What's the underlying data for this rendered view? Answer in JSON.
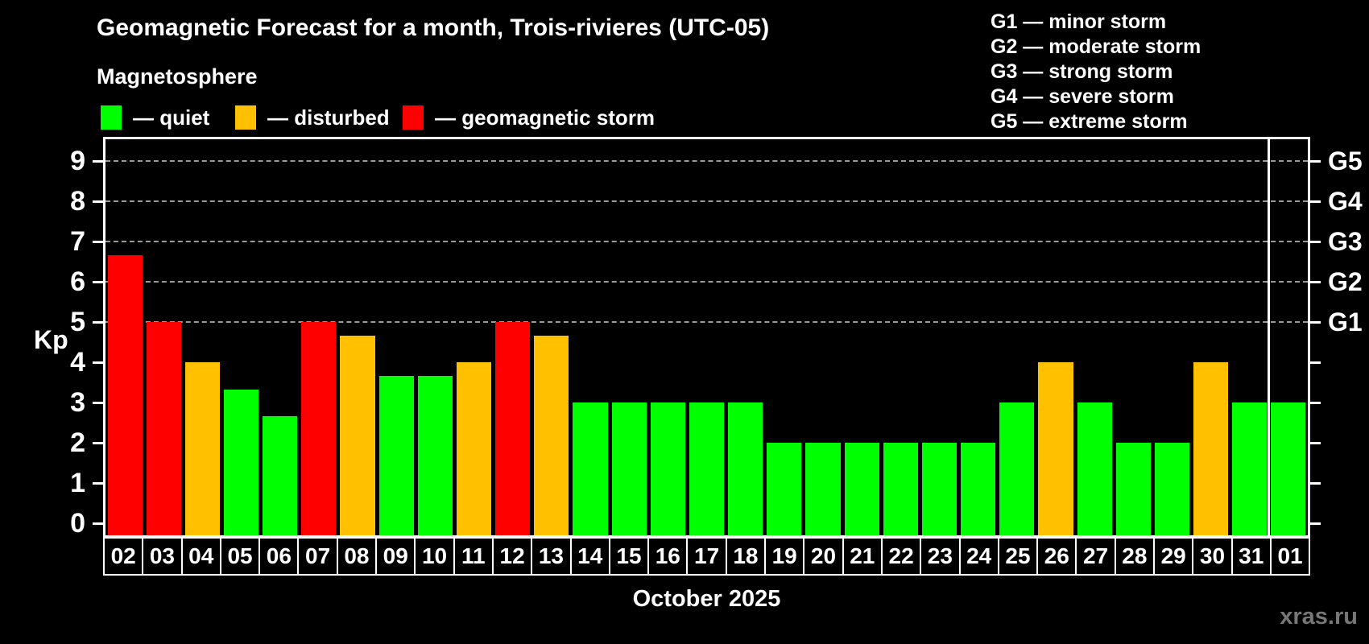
{
  "title": "Geomagnetic Forecast for a month, Trois-rivieres (UTC-05)",
  "subtitle": "Magnetosphere",
  "legend": {
    "items": [
      {
        "label": "— quiet",
        "status": "quiet",
        "color": "#00ff00"
      },
      {
        "label": "— disturbed",
        "status": "disturbed",
        "color": "#ffc000"
      },
      {
        "label": "— geomagnetic storm",
        "status": "storm",
        "color": "#ff0000"
      }
    ]
  },
  "g_legend": [
    "G1 — minor storm",
    "G2 — moderate storm",
    "G3 — strong storm",
    "G4 — severe storm",
    "G5 — extreme storm"
  ],
  "watermark": "xras.ru",
  "chart_data": {
    "type": "bar",
    "title": "Geomagnetic Forecast for a month, Trois-rivieres (UTC-05)",
    "xlabel": "October 2025",
    "ylabel": "Kp",
    "ylim": [
      0,
      9.6
    ],
    "y_ticks": [
      0,
      1,
      2,
      3,
      4,
      5,
      6,
      7,
      8,
      9
    ],
    "gridlines_at": [
      5,
      6,
      7,
      8,
      9
    ],
    "grid_style": "dashed",
    "legend_position": "top-left",
    "right_axis_labels": [
      {
        "text": "G1",
        "kp": 5
      },
      {
        "text": "G2",
        "kp": 6
      },
      {
        "text": "G3",
        "kp": 7
      },
      {
        "text": "G4",
        "kp": 8
      },
      {
        "text": "G5",
        "kp": 9
      }
    ],
    "categories": [
      "02",
      "03",
      "04",
      "05",
      "06",
      "07",
      "08",
      "09",
      "10",
      "11",
      "12",
      "13",
      "14",
      "15",
      "16",
      "17",
      "18",
      "19",
      "20",
      "21",
      "22",
      "23",
      "24",
      "25",
      "26",
      "27",
      "28",
      "29",
      "30",
      "31",
      "01"
    ],
    "values": [
      6.67,
      5,
      4,
      3.33,
      2.67,
      5,
      4.67,
      3.67,
      3.67,
      4,
      5,
      4.67,
      3,
      3,
      3,
      3,
      3,
      2,
      2,
      2,
      2,
      2,
      2,
      3,
      4,
      3,
      2,
      2,
      4,
      3,
      3
    ],
    "statuses": [
      "storm",
      "storm",
      "disturbed",
      "quiet",
      "quiet",
      "storm",
      "disturbed",
      "quiet",
      "quiet",
      "disturbed",
      "storm",
      "disturbed",
      "quiet",
      "quiet",
      "quiet",
      "quiet",
      "quiet",
      "quiet",
      "quiet",
      "quiet",
      "quiet",
      "quiet",
      "quiet",
      "quiet",
      "disturbed",
      "quiet",
      "quiet",
      "quiet",
      "disturbed",
      "quiet",
      "quiet"
    ],
    "colors": {
      "quiet": "#00ff00",
      "disturbed": "#ffc000",
      "storm": "#ff0000"
    },
    "thresholds": {
      "disturbed_min": 4,
      "storm_min": 5
    },
    "month_separator_before_index": 30
  }
}
